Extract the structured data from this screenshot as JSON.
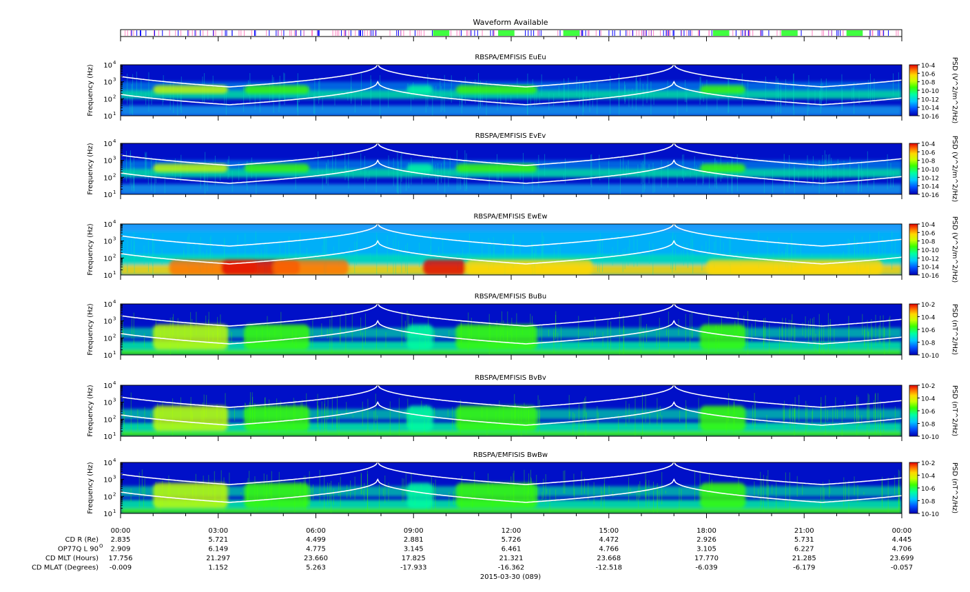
{
  "waveform_strip": {
    "title": "Waveform Available"
  },
  "panels": [
    {
      "title": "RBSPA/EMFISIS  EuEu",
      "ylabel": "Frequency (Hz)",
      "cbar_label": "PSD (V^2/m^2/Hz)",
      "cbar_ticks": [
        "10-4",
        "10-6",
        "10-8",
        "10-10",
        "10-12",
        "10-14",
        "10-16"
      ],
      "kind": "E"
    },
    {
      "title": "RBSPA/EMFISIS  EvEv",
      "ylabel": "Frequency (Hz)",
      "cbar_label": "PSD (V^2/m^2/Hz)",
      "cbar_ticks": [
        "10-4",
        "10-6",
        "10-8",
        "10-10",
        "10-12",
        "10-14",
        "10-16"
      ],
      "kind": "E"
    },
    {
      "title": "RBSPA/EMFISIS  EwEw",
      "ylabel": "Frequency (Hz)",
      "cbar_label": "PSD (V^2/m^2/Hz)",
      "cbar_ticks": [
        "10-4",
        "10-6",
        "10-8",
        "10-10",
        "10-12",
        "10-14",
        "10-16"
      ],
      "kind": "Ew"
    },
    {
      "title": "RBSPA/EMFISIS  BuBu",
      "ylabel": "Frequency (Hz)",
      "cbar_label": "PSD (nT^2/Hz)",
      "cbar_ticks": [
        "10-2",
        "10-4",
        "10-6",
        "10-8",
        "10-10"
      ],
      "kind": "B"
    },
    {
      "title": "RBSPA/EMFISIS  BvBv",
      "ylabel": "Frequency (Hz)",
      "cbar_label": "PSD (nT^2/Hz)",
      "cbar_ticks": [
        "10-2",
        "10-4",
        "10-6",
        "10-8",
        "10-10"
      ],
      "kind": "B"
    },
    {
      "title": "RBSPA/EMFISIS  BwBw",
      "ylabel": "Frequency (Hz)",
      "cbar_label": "PSD (nT^2/Hz)",
      "cbar_ticks": [
        "10-2",
        "10-4",
        "10-6",
        "10-8",
        "10-10"
      ],
      "kind": "B"
    }
  ],
  "y_ticks": [
    "10",
    "10",
    "10",
    "10"
  ],
  "y_exponents": [
    "1",
    "2",
    "3",
    "4"
  ],
  "x_ticks": [
    "00:00",
    "03:00",
    "06:00",
    "09:00",
    "12:00",
    "15:00",
    "18:00",
    "21:00",
    "00:00"
  ],
  "ephemeris": [
    {
      "label": "CD R (Re)",
      "values": [
        "2.835",
        "5.721",
        "4.499",
        "2.881",
        "5.726",
        "4.472",
        "2.926",
        "5.731",
        "4.445"
      ]
    },
    {
      "label": "OP77Q L 90",
      "values": [
        "2.909",
        "6.149",
        "4.775",
        "3.145",
        "6.461",
        "4.766",
        "3.105",
        "6.227",
        "4.706"
      ]
    },
    {
      "label": "CD MLT (Hours)",
      "values": [
        "17.756",
        "21.297",
        "23.660",
        "17.825",
        "21.321",
        "23.668",
        "17.770",
        "21.285",
        "23.699"
      ]
    },
    {
      "label": "CD MLAT (Degrees)",
      "values": [
        "-0.009",
        "1.152",
        "5.263",
        "-17.933",
        "-16.362",
        "-12.518",
        "-6.039",
        "-6.179",
        "-0.057"
      ]
    }
  ],
  "ephemeris_superscript": "O",
  "date_label": "2015-03-30 (089)",
  "chart_data": {
    "type": "heatmap",
    "x_unit": "hours UT",
    "xlim": [
      0,
      24
    ],
    "ylim_hz": [
      10,
      10000
    ],
    "y_scale": "log",
    "x_tick_hours": [
      0,
      3,
      6,
      9,
      12,
      15,
      18,
      21,
      24
    ],
    "white_curve_perigees_hours": [
      7.9,
      17.0
    ],
    "wave_bursts_green_hours": [
      [
        9.6,
        10.1
      ],
      [
        11.6,
        12.1
      ],
      [
        13.6,
        14.1
      ],
      [
        18.2,
        18.7
      ],
      [
        20.3,
        20.8
      ],
      [
        22.3,
        22.8
      ]
    ],
    "colormap": [
      "#0000b0",
      "#0050ff",
      "#00c8ff",
      "#00ffa0",
      "#3cff00",
      "#c8ff00",
      "#ffd800",
      "#ff7000",
      "#e00000"
    ]
  }
}
